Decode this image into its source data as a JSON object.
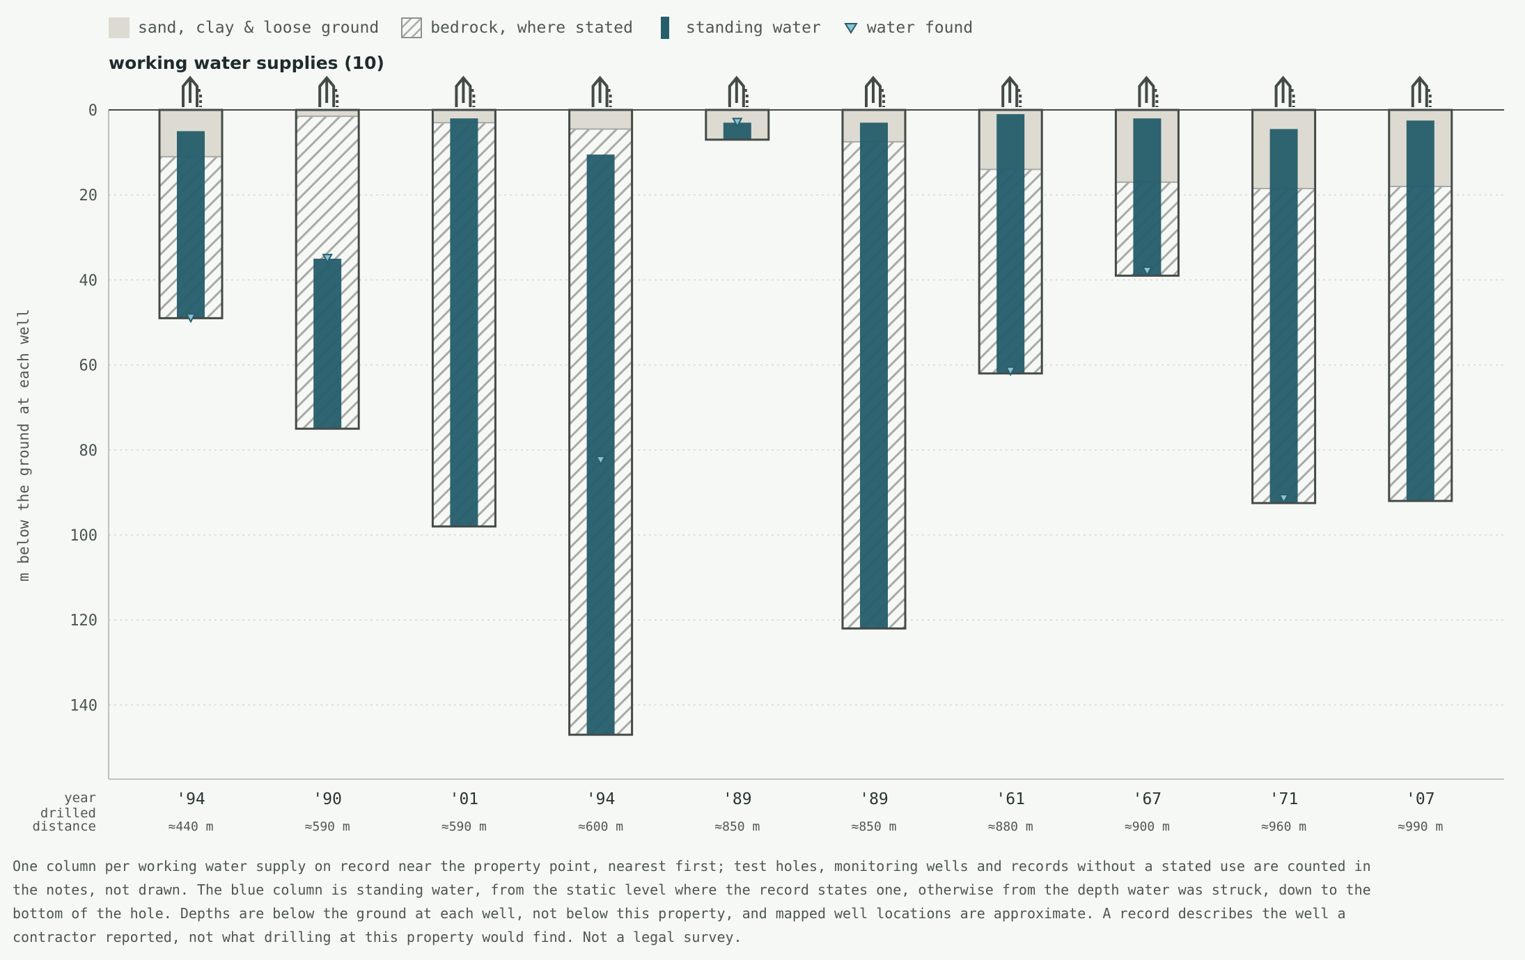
{
  "legend": {
    "ground": "sand, clay & loose ground",
    "bedrock": "bedrock, where stated",
    "water": "standing water",
    "found": "water found"
  },
  "row_labels": {
    "year": "year drilled",
    "distance": "distance"
  },
  "note": "One column per working water supply on record near the property point, nearest first; test holes, monitoring wells and records without a stated use are counted in the notes, not drawn. The blue column is standing water, from the static level where the record states one, otherwise from the depth water was struck, down to the bottom of the hole. Depths are below the ground at each well, not below this property, and mapped well locations are approximate. A record describes the well a contractor reported, not what drilling at this property would find. Not a legal survey.",
  "colors": {
    "ground": "#dddbd1",
    "hatch": "#a7aaa5",
    "water": "#275e6c",
    "outline": "#434b49",
    "found": "#8cc3d2"
  },
  "chart_data": {
    "type": "bar",
    "title": "working water supplies (10)",
    "ylabel": "m below the ground at each well",
    "ylim": [
      0,
      158
    ],
    "yticks": [
      0,
      20,
      40,
      60,
      80,
      100,
      120,
      140
    ],
    "grid": true,
    "legend_position": "top-left",
    "wells": [
      {
        "year": "'94",
        "distance": "≈440 m",
        "depth": 49,
        "ground_to": 11,
        "water_from": 5,
        "found": 49
      },
      {
        "year": "'90",
        "distance": "≈590 m",
        "depth": 75,
        "ground_to": 1.5,
        "water_from": 35,
        "found": 35
      },
      {
        "year": "'01",
        "distance": "≈590 m",
        "depth": 98,
        "ground_to": 3,
        "water_from": 2,
        "found": null
      },
      {
        "year": "'94",
        "distance": "≈600 m",
        "depth": 147,
        "ground_to": 4.5,
        "water_from": 10.5,
        "found": 82.5
      },
      {
        "year": "'89",
        "distance": "≈850 m",
        "depth": 7,
        "ground_to": 7,
        "water_from": 3,
        "found": 3
      },
      {
        "year": "'89",
        "distance": "≈850 m",
        "depth": 122,
        "ground_to": 7.5,
        "water_from": 3,
        "found": null
      },
      {
        "year": "'61",
        "distance": "≈880 m",
        "depth": 62,
        "ground_to": 14,
        "water_from": 1,
        "found": 61.5
      },
      {
        "year": "'67",
        "distance": "≈900 m",
        "depth": 39,
        "ground_to": 17,
        "water_from": 2,
        "found": 38
      },
      {
        "year": "'71",
        "distance": "≈960 m",
        "depth": 92.5,
        "ground_to": 18.5,
        "water_from": 4.5,
        "found": 91.5
      },
      {
        "year": "'07",
        "distance": "≈990 m",
        "depth": 92,
        "ground_to": 18,
        "water_from": 2.5,
        "found": null
      }
    ]
  }
}
